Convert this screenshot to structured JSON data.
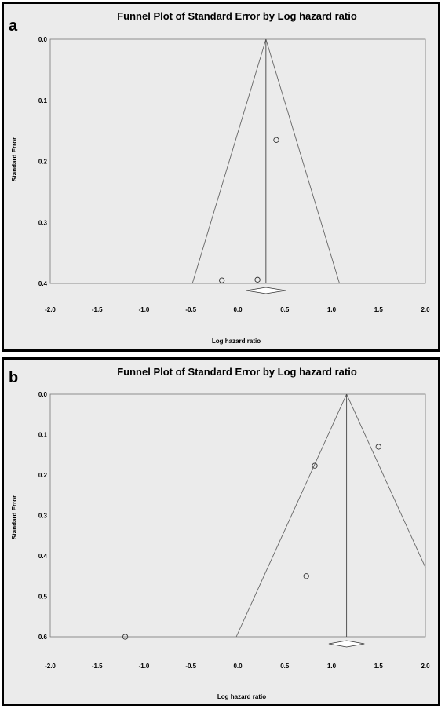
{
  "chart_data": [
    {
      "type": "scatter",
      "panel_label": "a",
      "title": "Funnel Plot of Standard Error by Log hazard ratio",
      "xlabel": "Log hazard ratio",
      "ylabel": "Standard Error",
      "xlim": [
        -2.0,
        2.0
      ],
      "ylim": [
        0.0,
        0.4
      ],
      "y_inverted": true,
      "xticks": [
        "-2.0",
        "-1.5",
        "-1.0",
        "-0.5",
        "0.0",
        "0.5",
        "1.0",
        "1.5",
        "2.0"
      ],
      "yticks": [
        "0.0",
        "0.1",
        "0.2",
        "0.3",
        "0.4"
      ],
      "grid": false,
      "summary_effect": 0.3,
      "summary_diamond": [
        0.09,
        0.51
      ],
      "points": [
        {
          "x": 0.41,
          "y": 0.165
        },
        {
          "x": -0.17,
          "y": 0.395
        },
        {
          "x": 0.21,
          "y": 0.394
        }
      ]
    },
    {
      "type": "scatter",
      "panel_label": "b",
      "title": "Funnel Plot of Standard Error by Log hazard ratio",
      "xlabel": "Log hazard ratio",
      "ylabel": "Standard Error",
      "xlim": [
        -2.0,
        2.0
      ],
      "ylim": [
        0.0,
        0.6
      ],
      "y_inverted": true,
      "xticks": [
        "-2.0",
        "-1.5",
        "-1.0",
        "-0.5",
        "0.0",
        "0.5",
        "1.0",
        "1.5",
        "2.0"
      ],
      "yticks": [
        "0.0",
        "0.1",
        "0.2",
        "0.3",
        "0.4",
        "0.5",
        "0.6"
      ],
      "grid": false,
      "summary_effect": 1.16,
      "summary_diamond": [
        0.97,
        1.35
      ],
      "points": [
        {
          "x": 1.5,
          "y": 0.13
        },
        {
          "x": 0.82,
          "y": 0.177
        },
        {
          "x": 0.73,
          "y": 0.45
        },
        {
          "x": -1.2,
          "y": 0.6
        }
      ]
    }
  ]
}
